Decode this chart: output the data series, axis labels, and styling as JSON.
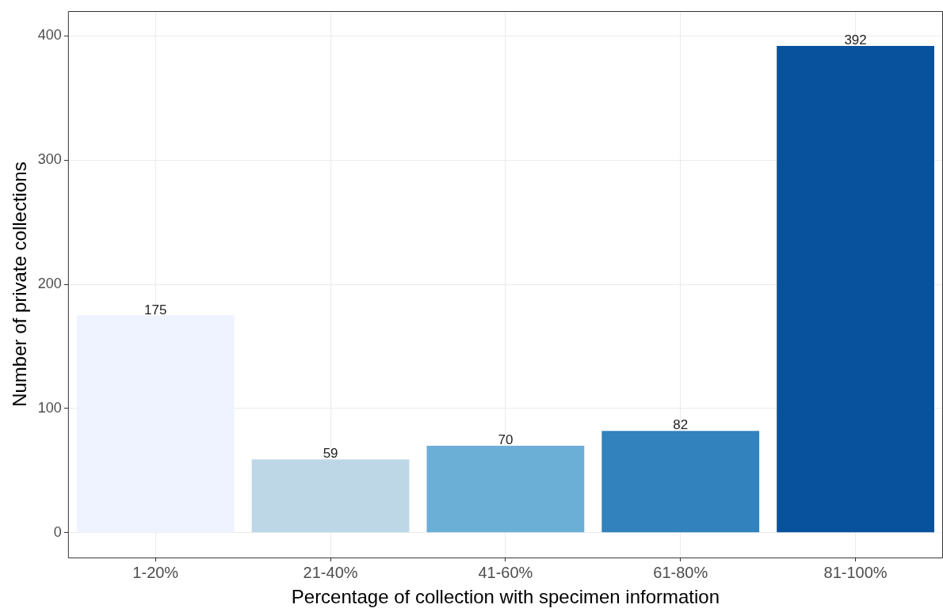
{
  "chart_data": {
    "type": "bar",
    "xlabel": "Percentage of collection with specimen information",
    "ylabel": "Number of private collections",
    "categories": [
      "1-20%",
      "21-40%",
      "41-60%",
      "61-80%",
      "81-100%"
    ],
    "values": [
      175,
      59,
      70,
      82,
      392
    ],
    "colors": [
      "#eff3ff",
      "#bdd7e7",
      "#6baed6",
      "#3182bd",
      "#08519c"
    ],
    "ylim": [
      -20,
      420
    ],
    "yticks": [
      0,
      100,
      200,
      300,
      400
    ],
    "grid": true,
    "data_labels": true
  }
}
